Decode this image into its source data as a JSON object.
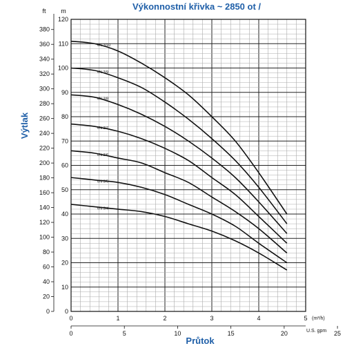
{
  "chart_data": {
    "type": "line",
    "title": "Výkonnostní křivka ~ 2850 ot /",
    "xlabel": "Průtok",
    "ylabel": "Výtlak",
    "y_unit_left": "ft",
    "y_unit_right": "m",
    "x_unit_top": "(m³/h)",
    "x_unit_bottom": "U.S. gpm",
    "xlim": [
      0,
      5
    ],
    "ylim": [
      0,
      120
    ],
    "x_ticks_m3h": [
      0,
      1,
      2,
      3,
      4,
      5
    ],
    "x_ticks_gpm": [
      0,
      5,
      10,
      15,
      20,
      25
    ],
    "y_ticks_m": [
      0,
      10,
      20,
      30,
      40,
      50,
      60,
      70,
      80,
      90,
      100,
      110,
      120
    ],
    "y_ticks_ft": [
      0,
      20,
      40,
      60,
      80,
      100,
      120,
      140,
      160,
      180,
      200,
      220,
      240,
      260,
      280,
      300,
      320,
      340,
      360,
      380
    ],
    "grid": true,
    "series": [
      {
        "name": "VN 3/10",
        "x": [
          0,
          0.5,
          1,
          1.5,
          2,
          2.5,
          3,
          3.5,
          4,
          4.6
        ],
        "y": [
          111,
          110,
          107,
          102,
          96,
          89,
          80,
          70,
          57,
          40
        ]
      },
      {
        "name": "VN 3/9",
        "x": [
          0,
          0.5,
          1,
          1.5,
          2,
          2.5,
          3,
          3.5,
          4,
          4.6
        ],
        "y": [
          100,
          99,
          96,
          92,
          86,
          79,
          71,
          62,
          51,
          36
        ]
      },
      {
        "name": "VN 3/8",
        "x": [
          0,
          0.5,
          1,
          1.5,
          2,
          2.5,
          3,
          3.5,
          4,
          4.6
        ],
        "y": [
          89,
          88,
          85,
          81,
          76,
          70,
          63,
          55,
          45,
          32
        ]
      },
      {
        "name": "VN 3/7",
        "x": [
          0,
          0.5,
          1,
          1.5,
          2,
          2.5,
          3,
          3.5,
          4,
          4.6
        ],
        "y": [
          77,
          76,
          74,
          71,
          67,
          62,
          55,
          48,
          39,
          28
        ]
      },
      {
        "name": "VN 3/6",
        "x": [
          0,
          0.5,
          1,
          1.5,
          2,
          2.5,
          3,
          3.5,
          4,
          4.6
        ],
        "y": [
          66,
          65,
          63,
          61,
          57,
          53,
          47,
          41,
          34,
          24
        ]
      },
      {
        "name": "VN 3/5",
        "x": [
          0,
          0.5,
          1,
          1.5,
          2,
          2.5,
          3,
          3.5,
          4,
          4.6
        ],
        "y": [
          55,
          54,
          53,
          51,
          48,
          44,
          40,
          35,
          28,
          20
        ]
      },
      {
        "name": "VN 3/4",
        "x": [
          0,
          0.5,
          1,
          1.5,
          2,
          2.5,
          3,
          3.5,
          4,
          4.6
        ],
        "y": [
          44,
          43,
          42,
          41,
          39,
          36,
          33,
          29,
          24,
          17
        ]
      }
    ]
  }
}
